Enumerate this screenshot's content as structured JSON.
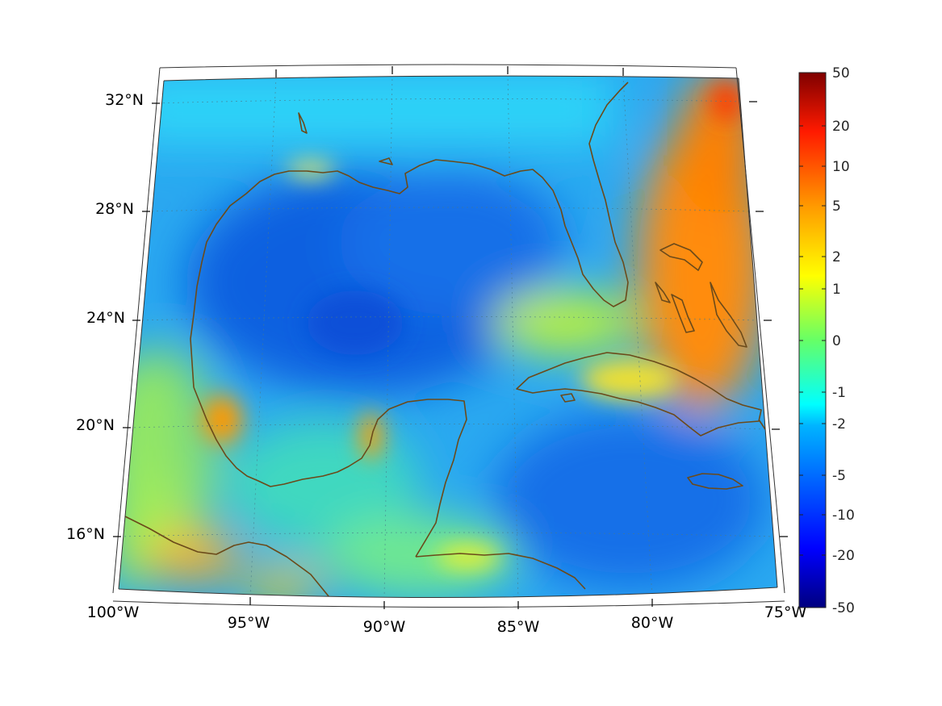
{
  "map": {
    "lon_labels": [
      "100°W",
      "95°W",
      "90°W",
      "85°W",
      "80°W",
      "75°W"
    ],
    "lat_labels": [
      "32°N",
      "28°N",
      "24°N",
      "20°N",
      "16°N"
    ],
    "extent": {
      "lon_min": -100,
      "lon_max": -75,
      "lat_min": 14,
      "lat_max": 33
    },
    "projection": "conic",
    "grid": "dotted",
    "coastline_color": "#6b4a1a"
  },
  "colorbar": {
    "ticks": [
      "50",
      "20",
      "10",
      "5",
      "2",
      "1",
      "0",
      "-1",
      "-2",
      "-5",
      "-10",
      "-20",
      "-50"
    ],
    "colormap": "jet",
    "placement": "right"
  }
}
